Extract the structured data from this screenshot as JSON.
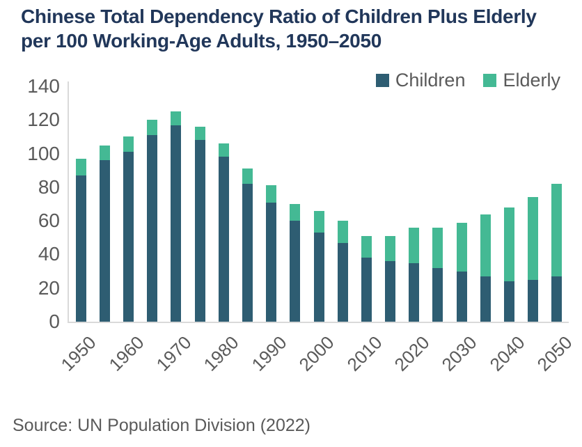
{
  "title": {
    "line1": "Chinese Total Dependency Ratio of Children Plus Elderly",
    "line2": "per 100 Working-Age Adults, 1950–2050"
  },
  "source": "Source: UN Population Division (2022)",
  "colors": {
    "children": "#2e5d72",
    "elderly": "#44b994",
    "title_text": "#21375a",
    "axis_text": "#5a5a5a",
    "plot_border": "#d9d9d9",
    "background": "#ffffff"
  },
  "chart_data": {
    "type": "bar",
    "stacked": true,
    "title": "Chinese Total Dependency Ratio of Children Plus Elderly per 100 Working-Age Adults, 1950–2050",
    "categories": [
      1950,
      1955,
      1960,
      1965,
      1970,
      1975,
      1980,
      1985,
      1990,
      1995,
      2000,
      2005,
      2010,
      2015,
      2020,
      2025,
      2030,
      2035,
      2040,
      2045,
      2050
    ],
    "series": [
      {
        "name": "Children",
        "color": "#2e5d72",
        "values": [
          87,
          96,
          101,
          111,
          117,
          108,
          98,
          82,
          71,
          60,
          53,
          47,
          38,
          36,
          35,
          32,
          30,
          27,
          24,
          25,
          27
        ]
      },
      {
        "name": "Elderly",
        "color": "#44b994",
        "values": [
          10,
          9,
          9,
          9,
          8,
          8,
          8,
          9,
          10,
          10,
          13,
          13,
          13,
          15,
          21,
          24,
          29,
          37,
          44,
          49,
          55
        ]
      }
    ],
    "totals": [
      97,
      105,
      110,
      120,
      125,
      116,
      106,
      91,
      81,
      70,
      66,
      60,
      51,
      51,
      56,
      56,
      59,
      64,
      68,
      74,
      82
    ],
    "ylim": [
      0,
      140
    ],
    "ytick_step": 20,
    "ytick_labels": [
      "0",
      "20",
      "40",
      "60",
      "80",
      "100",
      "120",
      "140"
    ],
    "xtick_label_every_years": 10,
    "xtick_labels": [
      "1950",
      "1960",
      "1970",
      "1980",
      "1990",
      "2000",
      "2010",
      "2020",
      "2030",
      "2040",
      "2050"
    ],
    "grid": false,
    "legend_position": "top-right",
    "source": "Source: UN Population Division (2022)"
  }
}
